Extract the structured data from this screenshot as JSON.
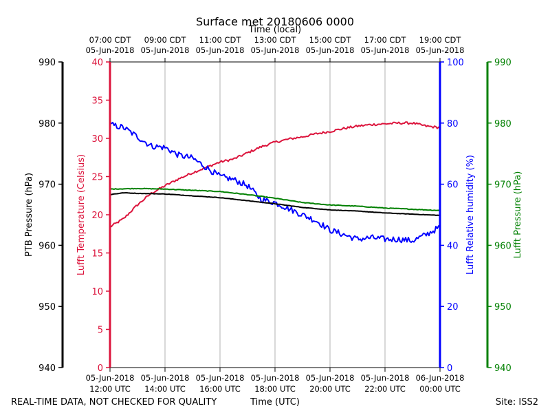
{
  "chart_data": {
    "type": "line",
    "title": "Surface met 20180606 0000",
    "top_axis_label": "Time (local)",
    "xlabel": "Time (UTC)",
    "footer_left": "REAL-TIME DATA, NOT CHECKED FOR QUALITY",
    "footer_right": "Site: ISS2",
    "x_range_hours": [
      12,
      24
    ],
    "top_ticks": [
      {
        "h": 14,
        "line1": "09:00 CDT",
        "line2": "05-Jun-2018"
      },
      {
        "h": 16,
        "line1": "11:00 CDT",
        "line2": "05-Jun-2018"
      },
      {
        "h": 18,
        "line1": "13:00 CDT",
        "line2": "05-Jun-2018"
      },
      {
        "h": 20,
        "line1": "15:00 CDT",
        "line2": "05-Jun-2018"
      },
      {
        "h": 22,
        "line1": "17:00 CDT",
        "line2": "05-Jun-2018"
      },
      {
        "h": 24,
        "line1": "19:00 CDT",
        "line2": "05-Jun-2018"
      },
      {
        "h": 12,
        "line1": "07:00 CDT",
        "line2": "05-Jun-2018"
      }
    ],
    "bottom_ticks": [
      {
        "h": 12,
        "line1": "05-Jun-2018",
        "line2": "12:00 UTC"
      },
      {
        "h": 14,
        "line1": "05-Jun-2018",
        "line2": "14:00 UTC"
      },
      {
        "h": 16,
        "line1": "05-Jun-2018",
        "line2": "16:00 UTC"
      },
      {
        "h": 18,
        "line1": "05-Jun-2018",
        "line2": "18:00 UTC"
      },
      {
        "h": 20,
        "line1": "05-Jun-2018",
        "line2": "20:00 UTC"
      },
      {
        "h": 22,
        "line1": "05-Jun-2018",
        "line2": "22:00 UTC"
      },
      {
        "h": 24,
        "line1": "06-Jun-2018",
        "line2": "00:00 UTC"
      }
    ],
    "axes": {
      "ptb": {
        "label": "PTB Pressure (hPa)",
        "ylim": [
          940,
          990
        ],
        "ticks": [
          940,
          950,
          960,
          970,
          980,
          990
        ],
        "color": "#000000"
      },
      "temp": {
        "label": "Lufft Temperature (Celsius)",
        "ylim": [
          0,
          40
        ],
        "ticks": [
          0,
          5,
          10,
          15,
          20,
          25,
          30,
          35,
          40
        ],
        "color": "#dc143c"
      },
      "rh": {
        "label": "Lufft Relative humidity (%)",
        "ylim": [
          0,
          100
        ],
        "ticks": [
          0,
          20,
          40,
          60,
          80,
          100
        ],
        "color": "#0000ff"
      },
      "lp": {
        "label": "Lufft Pressure (hPa)",
        "ylim": [
          940,
          990
        ],
        "ticks": [
          940,
          950,
          960,
          970,
          980,
          990
        ],
        "color": "#008000"
      }
    },
    "series": [
      {
        "name": "Lufft Temperature",
        "axis": "temp",
        "color": "#dc143c",
        "noise": 0.15,
        "x": [
          12,
          12.5,
          13,
          13.5,
          14,
          14.5,
          15,
          15.5,
          16,
          16.5,
          17,
          17.5,
          18,
          18.5,
          19,
          19.5,
          20,
          20.5,
          21,
          21.5,
          22,
          22.5,
          23,
          23.5,
          24
        ],
        "values": [
          18.4,
          19.5,
          21.3,
          22.8,
          23.8,
          24.7,
          25.5,
          26.2,
          26.9,
          27.3,
          28.1,
          28.9,
          29.5,
          29.9,
          30.2,
          30.6,
          30.9,
          31.3,
          31.6,
          31.8,
          31.9,
          32.0,
          32.0,
          31.6,
          31.4
        ]
      },
      {
        "name": "Lufft Relative humidity",
        "axis": "rh",
        "color": "#0000ff",
        "noise": 1.0,
        "x": [
          12,
          12.5,
          13,
          13.5,
          14,
          14.5,
          15,
          15.5,
          16,
          16.5,
          17,
          17.5,
          18,
          18.5,
          19,
          19.5,
          20,
          20.5,
          21,
          21.5,
          22,
          22.5,
          23,
          23.5,
          24
        ],
        "values": [
          79.5,
          78.5,
          75.5,
          72.5,
          72.0,
          69.5,
          68.5,
          65.5,
          62.5,
          61.5,
          59.5,
          55.0,
          54.0,
          52.0,
          50.0,
          48.0,
          45.0,
          43.5,
          42.0,
          42.5,
          42.0,
          42.0,
          41.5,
          43.5,
          46.0
        ]
      },
      {
        "name": "Lufft Pressure",
        "axis": "lp",
        "color": "#008000",
        "noise": 0.05,
        "x": [
          12,
          13,
          14,
          15,
          16,
          17,
          18,
          19,
          20,
          21,
          22,
          23,
          24
        ],
        "values": [
          969.2,
          969.3,
          969.2,
          969.0,
          968.8,
          968.3,
          967.7,
          967.0,
          966.6,
          966.4,
          966.1,
          965.9,
          965.7
        ]
      },
      {
        "name": "PTB Pressure",
        "axis": "ptb",
        "color": "#000000",
        "noise": 0.03,
        "x": [
          12,
          12.5,
          13,
          14,
          15,
          16,
          17,
          18,
          19,
          20,
          21,
          22,
          23,
          24
        ],
        "values": [
          968.3,
          968.6,
          968.5,
          968.4,
          968.1,
          967.8,
          967.3,
          966.8,
          966.2,
          965.8,
          965.6,
          965.3,
          965.1,
          964.9
        ]
      }
    ]
  }
}
